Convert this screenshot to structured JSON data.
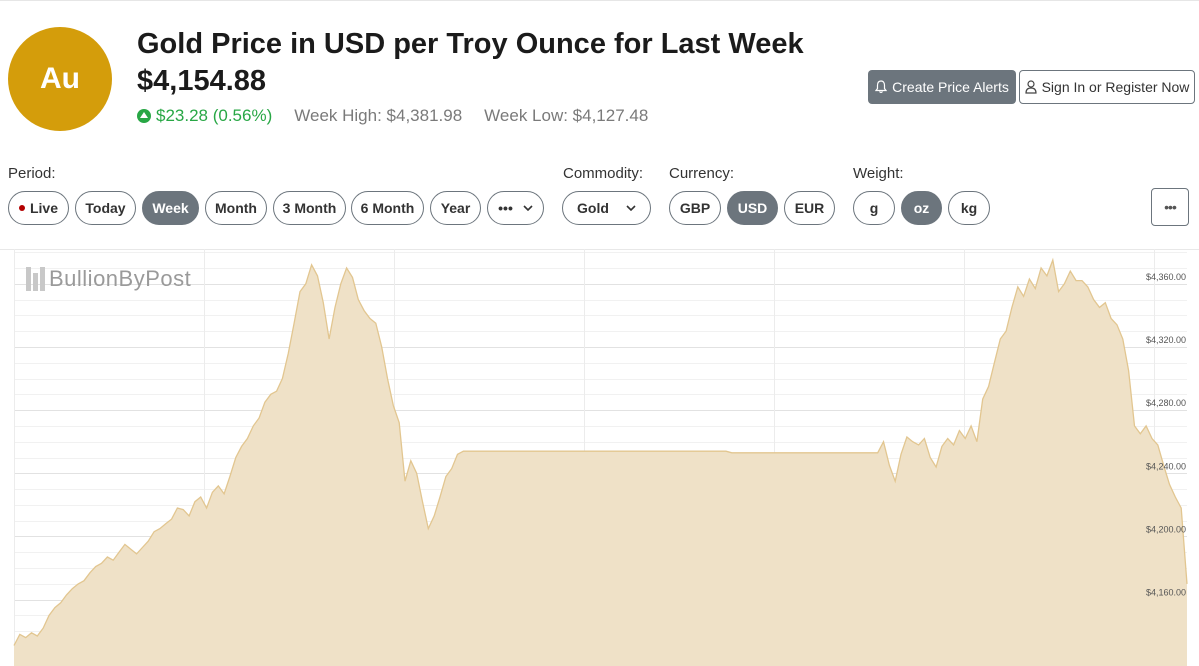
{
  "header": {
    "badge": "Au",
    "title": "Gold Price in USD per Troy Ounce for Last Week",
    "price": "$4,154.88",
    "change": "$23.28 (0.56%)",
    "week_high": "Week High: $4,381.98",
    "week_low": "Week Low: $4,127.48"
  },
  "actions": {
    "create_alerts": "Create Price Alerts",
    "sign_in": "Sign In or Register Now"
  },
  "controls": {
    "period_label": "Period:",
    "periods": [
      "Live",
      "Today",
      "Week",
      "Month",
      "3 Month",
      "6 Month",
      "Year",
      "•••"
    ],
    "active_period": "Week",
    "commodity_label": "Commodity:",
    "commodity_value": "Gold",
    "currency_label": "Currency:",
    "currencies": [
      "GBP",
      "USD",
      "EUR"
    ],
    "active_currency": "USD",
    "weight_label": "Weight:",
    "weights": [
      "g",
      "oz",
      "kg"
    ],
    "active_weight": "oz",
    "more_label": "•••"
  },
  "watermark": "BullionByPost",
  "colors": {
    "badge": "#d49d0b",
    "positive": "#28a745",
    "active_button": "#6c757d",
    "area_fill": "#efe1c7",
    "area_stroke": "#e2c690"
  },
  "chart_data": {
    "type": "area",
    "y_tick_labels": [
      "$4,160.00",
      "$4,200.00",
      "$4,240.00",
      "$4,280.00",
      "$4,320.00",
      "$4,360.00"
    ],
    "ylim": [
      4118,
      4382
    ],
    "x_dividers": 6,
    "grid": true,
    "series": [
      {
        "values": [
          4131,
          4138,
          4136,
          4139,
          4137,
          4142,
          4150,
          4155,
          4158,
          4163,
          4167,
          4170,
          4172,
          4177,
          4181,
          4183,
          4187,
          4185,
          4190,
          4195,
          4192,
          4189,
          4193,
          4197,
          4203,
          4205,
          4208,
          4211,
          4218,
          4217,
          4213,
          4222,
          4225,
          4218,
          4228,
          4232,
          4227,
          4238,
          4250,
          4257,
          4262,
          4270,
          4275,
          4285,
          4290,
          4292,
          4300,
          4316,
          4335,
          4355,
          4360,
          4372,
          4365,
          4348,
          4325,
          4345,
          4360,
          4370,
          4364,
          4350,
          4343,
          4338,
          4335,
          4320,
          4300,
          4283,
          4272,
          4235,
          4248,
          4240,
          4222,
          4205,
          4213,
          4225,
          4238,
          4243,
          4252,
          4254,
          4254,
          4254,
          4254,
          4254,
          4254,
          4254,
          4254,
          4254,
          4254,
          4254,
          4254,
          4254,
          4254,
          4254,
          4254,
          4254,
          4254,
          4254,
          4254,
          4254,
          4254,
          4254,
          4254,
          4254,
          4254,
          4254,
          4254,
          4254,
          4254,
          4254,
          4254,
          4254,
          4254,
          4254,
          4254,
          4254,
          4254,
          4254,
          4254,
          4254,
          4254,
          4254,
          4254,
          4254,
          4254,
          4253,
          4253,
          4253,
          4253,
          4253,
          4253,
          4253,
          4253,
          4253,
          4253,
          4253,
          4253,
          4253,
          4253,
          4253,
          4253,
          4253,
          4253,
          4253,
          4253,
          4253,
          4253,
          4253,
          4253,
          4253,
          4253,
          4260,
          4245,
          4235,
          4252,
          4263,
          4260,
          4258,
          4262,
          4250,
          4244,
          4257,
          4262,
          4258,
          4267,
          4262,
          4270,
          4260,
          4287,
          4295,
          4310,
          4325,
          4330,
          4345,
          4358,
          4352,
          4363,
          4357,
          4370,
          4365,
          4375,
          4355,
          4360,
          4368,
          4362,
          4362,
          4358,
          4350,
          4345,
          4348,
          4338,
          4334,
          4325,
          4305,
          4270,
          4265,
          4270,
          4262,
          4258,
          4245,
          4233,
          4225,
          4218,
          4170
        ]
      }
    ]
  }
}
